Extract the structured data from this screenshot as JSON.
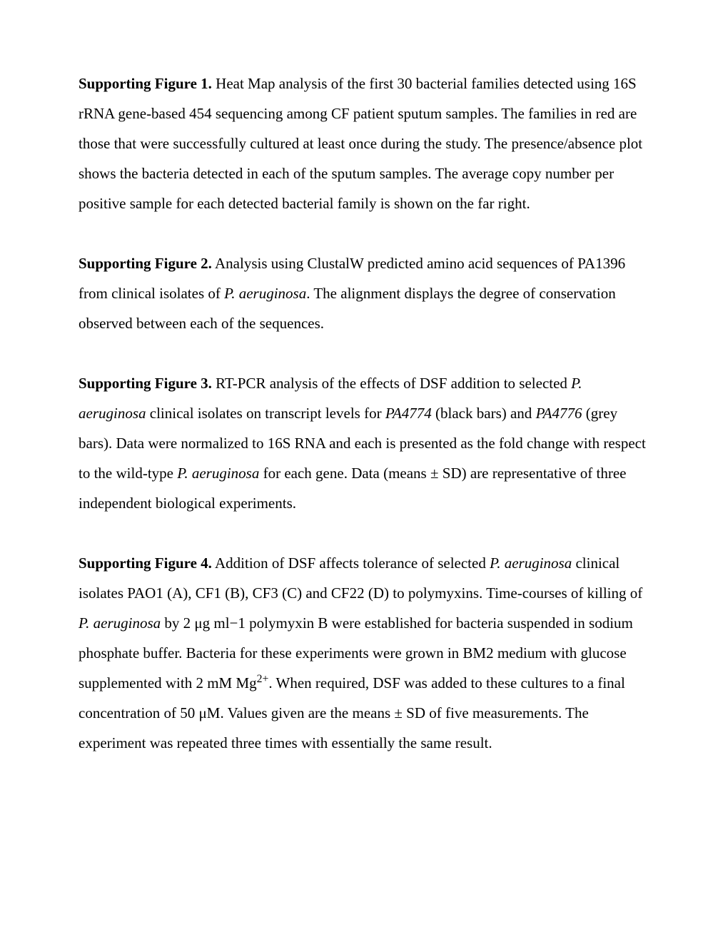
{
  "fig1": {
    "label": "Supporting Figure 1.",
    "text": " Heat Map analysis of the first 30 bacterial families detected using 16S rRNA gene-based 454 sequencing among CF patient sputum samples. The families in red are those that were successfully cultured at least once during the study. The presence/absence plot shows the bacteria detected in each of the sputum samples. The average copy number per positive sample for each detected bacterial family is shown on the far right."
  },
  "fig2": {
    "label": "Supporting Figure 2.",
    "text_a": " Analysis using ClustalW predicted amino acid sequences of PA1396 from clinical isolates of ",
    "italic_a": "P. aeruginosa",
    "text_b": ". The alignment displays the degree of conservation observed between each of the sequences."
  },
  "fig3": {
    "label": "Supporting Figure 3.",
    "text_a": " RT-PCR analysis of the effects of DSF addition to selected ",
    "italic_a": "P. aeruginosa",
    "text_b": " clinical isolates on transcript levels for ",
    "italic_b": "PA4774",
    "text_c": " (black bars) and ",
    "italic_c": "PA4776",
    "text_d": " (grey bars). Data were normalized to 16S RNA and each is presented as the fold change with respect to the wild-type ",
    "italic_d": "P. aeruginosa",
    "text_e": " for each gene. Data (means ± SD) are representative of three independent biological experiments."
  },
  "fig4": {
    "label": "Supporting Figure 4.",
    "text_a": " Addition of DSF affects tolerance of selected ",
    "italic_a": "P. aeruginosa",
    "text_b": " clinical isolates PAO1 (A), CF1 (B), CF3 (C) and CF22 (D) to polymyxins. Time-courses of killing of ",
    "italic_b": "P. aeruginosa",
    "text_c": " by 2 μg ml−1 polymyxin B were established for bacteria suspended in sodium phosphate buffer. Bacteria for these experiments were grown in BM2 medium with glucose supplemented with 2 mM Mg",
    "sup_a": "2+",
    "text_d": ". When required, DSF was added to these cultures to a final concentration of 50 μM. Values given are the means ± SD of five measurements. The experiment was repeated three times with essentially the same result."
  }
}
